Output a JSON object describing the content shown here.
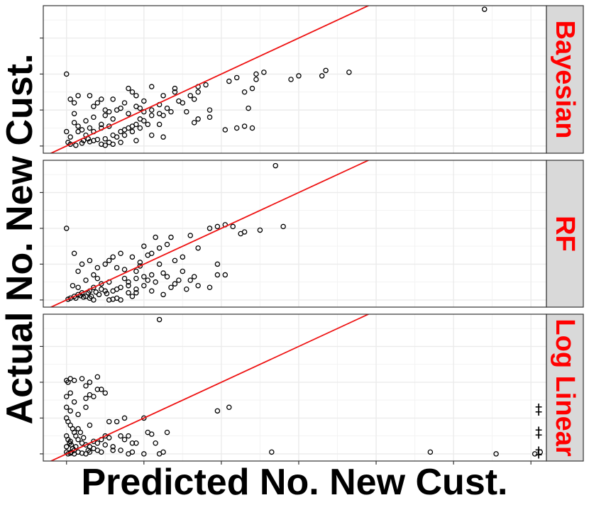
{
  "chart_data": {
    "type": "scatter",
    "title": "",
    "xlabel": "Predicted No. New Cust.",
    "ylabel": "Actual No. New Cust.",
    "x_range": [
      -0.3,
      6.2
    ],
    "y_range": [
      -0.2,
      3.9
    ],
    "grid": true,
    "reference_line": {
      "slope": 1,
      "intercept": 0,
      "color": "#ee1111"
    },
    "colors": {
      "strip_bg": "#d9d9d9",
      "strip_text": "#ff0000",
      "points": "#000000",
      "line": "#ee1111",
      "grid": "#ebebeb"
    },
    "panels": [
      {
        "strip": "Bayesian",
        "points": [
          [
            5.4,
            3.8
          ],
          [
            3.35,
            2.1
          ],
          [
            3.65,
            2.05
          ],
          [
            3.3,
            1.95
          ],
          [
            3.0,
            1.95
          ],
          [
            2.9,
            1.85
          ],
          [
            2.55,
            2.05
          ],
          [
            2.45,
            2.0
          ],
          [
            2.2,
            1.9
          ],
          [
            2.1,
            1.8
          ],
          [
            2.3,
            1.5
          ],
          [
            2.4,
            1.6
          ],
          [
            2.45,
            1.85
          ],
          [
            2.35,
            1.05
          ],
          [
            1.8,
            1.7
          ],
          [
            1.6,
            1.4
          ],
          [
            1.65,
            1.3
          ],
          [
            1.7,
            1.5
          ],
          [
            1.5,
            1.2
          ],
          [
            1.4,
            1.5
          ],
          [
            1.4,
            1.6
          ],
          [
            1.25,
            1.4
          ],
          [
            1.1,
            1.65
          ],
          [
            1.1,
            1.0
          ],
          [
            1.0,
            1.25
          ],
          [
            0.9,
            1.1
          ],
          [
            0.9,
            1.4
          ],
          [
            0.85,
            1.5
          ],
          [
            0.75,
            1.2
          ],
          [
            0.8,
            1.6
          ],
          [
            0.7,
            1.05
          ],
          [
            0.6,
            1.3
          ],
          [
            0.5,
            1.0
          ],
          [
            0.45,
            1.3
          ],
          [
            0.4,
            1.2
          ],
          [
            0.3,
            1.4
          ],
          [
            0.35,
            1.1
          ],
          [
            0.15,
            1.4
          ],
          [
            0.1,
            1.2
          ],
          [
            0.0,
            2.0
          ],
          [
            0.05,
            1.3
          ],
          [
            1.7,
            1.65
          ],
          [
            1.85,
            1.0
          ],
          [
            1.45,
            1.25
          ],
          [
            1.55,
            0.95
          ],
          [
            1.25,
            0.85
          ],
          [
            1.2,
            1.15
          ],
          [
            1.35,
            0.95
          ],
          [
            1.0,
            0.95
          ],
          [
            0.95,
            1.05
          ],
          [
            0.8,
            0.9
          ],
          [
            0.6,
            0.75
          ],
          [
            0.65,
            1.0
          ],
          [
            0.5,
            0.85
          ],
          [
            0.55,
            0.95
          ],
          [
            0.45,
            0.6
          ],
          [
            0.3,
            0.5
          ],
          [
            0.35,
            0.8
          ],
          [
            0.25,
            0.7
          ],
          [
            0.2,
            0.45
          ],
          [
            0.15,
            0.55
          ],
          [
            0.1,
            0.9
          ],
          [
            0.1,
            0.65
          ],
          [
            0.05,
            0.25
          ],
          [
            0.0,
            0.4
          ],
          [
            0.02,
            0.1
          ],
          [
            0.05,
            0.05
          ],
          [
            0.12,
            0.02
          ],
          [
            0.2,
            0.08
          ],
          [
            0.3,
            0.12
          ],
          [
            0.4,
            0.18
          ],
          [
            0.5,
            0.2
          ],
          [
            0.6,
            0.3
          ],
          [
            0.7,
            0.4
          ],
          [
            0.8,
            0.5
          ],
          [
            0.9,
            0.6
          ],
          [
            1.0,
            0.7
          ],
          [
            1.1,
            0.85
          ],
          [
            1.2,
            0.9
          ],
          [
            1.3,
            1.05
          ],
          [
            0.25,
            0.3
          ],
          [
            0.15,
            0.4
          ],
          [
            0.35,
            0.4
          ],
          [
            0.45,
            0.5
          ],
          [
            0.55,
            0.55
          ],
          [
            0.75,
            0.45
          ],
          [
            0.85,
            0.55
          ],
          [
            0.95,
            0.75
          ],
          [
            0.7,
            0.1
          ],
          [
            0.6,
            0.05
          ],
          [
            0.55,
            0.1
          ],
          [
            0.5,
            0.02
          ],
          [
            0.45,
            0.05
          ],
          [
            1.1,
            0.3
          ],
          [
            0.9,
            0.15
          ],
          [
            1.25,
            0.25
          ],
          [
            2.2,
            0.5
          ],
          [
            2.3,
            0.55
          ],
          [
            2.4,
            0.5
          ],
          [
            2.05,
            0.45
          ],
          [
            1.7,
            0.75
          ],
          [
            1.85,
            0.8
          ],
          [
            1.65,
            0.65
          ],
          [
            1.2,
            0.6
          ],
          [
            1.05,
            0.6
          ],
          [
            0.95,
            0.5
          ],
          [
            0.85,
            0.4
          ],
          [
            0.75,
            0.3
          ],
          [
            0.65,
            0.25
          ],
          [
            0.35,
            0.15
          ],
          [
            0.28,
            0.2
          ],
          [
            0.22,
            0.15
          ]
        ]
      },
      {
        "strip": "RF",
        "points": [
          [
            2.7,
            3.75
          ],
          [
            2.8,
            2.05
          ],
          [
            2.5,
            1.95
          ],
          [
            2.3,
            1.9
          ],
          [
            2.25,
            1.85
          ],
          [
            2.15,
            2.05
          ],
          [
            2.05,
            2.1
          ],
          [
            1.95,
            2.05
          ],
          [
            1.85,
            2.0
          ],
          [
            1.6,
            1.8
          ],
          [
            1.35,
            1.75
          ],
          [
            1.3,
            1.55
          ],
          [
            1.7,
            1.45
          ],
          [
            1.2,
            1.45
          ],
          [
            1.15,
            1.75
          ],
          [
            1.0,
            1.5
          ],
          [
            1.5,
            1.2
          ],
          [
            1.4,
            1.1
          ],
          [
            1.1,
            1.3
          ],
          [
            1.05,
            1.25
          ],
          [
            0.95,
            1.05
          ],
          [
            0.85,
            1.2
          ],
          [
            0.7,
            1.3
          ],
          [
            0.6,
            1.2
          ],
          [
            0.55,
            1.1
          ],
          [
            0.5,
            1.0
          ],
          [
            0.4,
            0.9
          ],
          [
            0.35,
            0.7
          ],
          [
            0.3,
            1.1
          ],
          [
            0.2,
            1.0
          ],
          [
            0.15,
            0.8
          ],
          [
            0.1,
            1.3
          ],
          [
            0.0,
            2.0
          ],
          [
            1.95,
            1.0
          ],
          [
            2.05,
            0.7
          ],
          [
            1.5,
            0.8
          ],
          [
            1.25,
            0.75
          ],
          [
            1.3,
            0.65
          ],
          [
            1.15,
            0.5
          ],
          [
            1.05,
            0.55
          ],
          [
            0.9,
            0.8
          ],
          [
            0.8,
            0.4
          ],
          [
            0.75,
            0.6
          ],
          [
            0.65,
            0.3
          ],
          [
            0.55,
            0.5
          ],
          [
            0.45,
            0.45
          ],
          [
            0.35,
            0.35
          ],
          [
            0.3,
            0.25
          ],
          [
            0.2,
            0.2
          ],
          [
            0.15,
            0.15
          ],
          [
            0.1,
            0.1
          ],
          [
            0.05,
            0.05
          ],
          [
            0.02,
            0.02
          ],
          [
            0.12,
            0.05
          ],
          [
            0.22,
            0.08
          ],
          [
            0.32,
            0.1
          ],
          [
            0.42,
            0.15
          ],
          [
            0.52,
            0.18
          ],
          [
            0.6,
            0.25
          ],
          [
            0.7,
            0.35
          ],
          [
            0.8,
            0.5
          ],
          [
            0.9,
            0.6
          ],
          [
            1.0,
            0.65
          ],
          [
            1.1,
            0.7
          ],
          [
            0.55,
            0.0
          ],
          [
            0.6,
            0.02
          ],
          [
            0.65,
            0.05
          ],
          [
            0.7,
            0.0
          ],
          [
            0.85,
            0.1
          ],
          [
            0.9,
            0.2
          ],
          [
            1.1,
            0.25
          ],
          [
            1.35,
            0.35
          ],
          [
            1.4,
            0.45
          ],
          [
            1.45,
            0.55
          ],
          [
            1.65,
            0.65
          ],
          [
            1.7,
            0.4
          ],
          [
            1.85,
            0.35
          ],
          [
            1.55,
            0.3
          ],
          [
            1.25,
            0.15
          ],
          [
            0.4,
            0.6
          ],
          [
            0.45,
            0.3
          ],
          [
            0.25,
            0.55
          ],
          [
            0.15,
            0.35
          ],
          [
            0.08,
            0.4
          ],
          [
            0.35,
            0.0
          ],
          [
            0.3,
            0.05
          ],
          [
            0.25,
            0.1
          ],
          [
            0.18,
            0.12
          ],
          [
            0.28,
            0.2
          ],
          [
            0.5,
            0.25
          ],
          [
            0.38,
            0.22
          ],
          [
            1.95,
            0.7
          ],
          [
            1.6,
            0.55
          ],
          [
            1.2,
            1.0
          ],
          [
            0.95,
            0.95
          ],
          [
            0.75,
            0.85
          ],
          [
            0.65,
            0.9
          ],
          [
            0.9,
            0.3
          ],
          [
            0.8,
            0.2
          ],
          [
            1.0,
            0.4
          ]
        ]
      },
      {
        "strip": "Log Linear",
        "points": [
          [
            1.2,
            3.75
          ],
          [
            0.0,
            2.05
          ],
          [
            0.02,
            2.0
          ],
          [
            0.05,
            2.1
          ],
          [
            0.1,
            2.05
          ],
          [
            0.2,
            2.1
          ],
          [
            0.3,
            2.0
          ],
          [
            0.4,
            2.15
          ],
          [
            0.25,
            1.9
          ],
          [
            0.4,
            1.8
          ],
          [
            0.45,
            1.8
          ],
          [
            0.5,
            1.7
          ],
          [
            0.3,
            1.65
          ],
          [
            0.35,
            1.6
          ],
          [
            0.25,
            1.55
          ],
          [
            0.0,
            1.6
          ],
          [
            0.05,
            1.7
          ],
          [
            0.1,
            1.45
          ],
          [
            0.0,
            1.3
          ],
          [
            0.05,
            1.2
          ],
          [
            0.15,
            1.1
          ],
          [
            0.25,
            1.3
          ],
          [
            0.0,
            1.0
          ],
          [
            0.02,
            0.9
          ],
          [
            0.05,
            0.8
          ],
          [
            0.08,
            0.7
          ],
          [
            0.1,
            0.6
          ],
          [
            0.12,
            0.5
          ],
          [
            0.15,
            0.4
          ],
          [
            0.2,
            0.3
          ],
          [
            0.25,
            0.25
          ],
          [
            0.3,
            0.2
          ],
          [
            0.35,
            0.15
          ],
          [
            0.4,
            0.1
          ],
          [
            0.45,
            0.05
          ],
          [
            0.0,
            0.5
          ],
          [
            0.02,
            0.4
          ],
          [
            0.04,
            0.3
          ],
          [
            0.06,
            0.25
          ],
          [
            0.08,
            0.15
          ],
          [
            0.1,
            0.1
          ],
          [
            0.0,
            0.05
          ],
          [
            0.02,
            0.0
          ],
          [
            0.05,
            0.02
          ],
          [
            0.1,
            0.0
          ],
          [
            0.15,
            0.05
          ],
          [
            0.2,
            0.02
          ],
          [
            0.25,
            0.0
          ],
          [
            0.3,
            0.05
          ],
          [
            0.4,
            0.3
          ],
          [
            0.45,
            0.4
          ],
          [
            0.5,
            0.5
          ],
          [
            0.55,
            0.45
          ],
          [
            0.55,
            0.9
          ],
          [
            0.65,
            0.9
          ],
          [
            0.7,
            0.5
          ],
          [
            0.75,
            1.0
          ],
          [
            0.75,
            0.4
          ],
          [
            0.8,
            0.0
          ],
          [
            0.85,
            0.05
          ],
          [
            0.9,
            0.3
          ],
          [
            1.0,
            1.0
          ],
          [
            1.05,
            0.6
          ],
          [
            1.1,
            0.55
          ],
          [
            1.0,
            0.0
          ],
          [
            1.2,
            0.0
          ],
          [
            1.25,
            0.05
          ],
          [
            1.3,
            0.6
          ],
          [
            0.8,
            0.5
          ],
          [
            0.85,
            0.3
          ],
          [
            0.6,
            0.2
          ],
          [
            0.7,
            0.1
          ],
          [
            0.5,
            0.25
          ],
          [
            0.35,
            0.35
          ],
          [
            0.15,
            0.7
          ],
          [
            0.3,
            0.8
          ],
          [
            0.6,
            0.1
          ],
          [
            1.15,
            0.3
          ],
          [
            1.95,
            1.2
          ],
          [
            2.1,
            1.3
          ],
          [
            2.65,
            0.05
          ],
          [
            4.7,
            0.05
          ],
          [
            5.55,
            0.0
          ],
          [
            6.05,
            0.0
          ],
          [
            6.12,
            0.05
          ],
          [
            0.05,
            0.35
          ],
          [
            0.0,
            0.2
          ],
          [
            0.06,
            0.05
          ],
          [
            0.12,
            0.2
          ],
          [
            0.18,
            0.6
          ],
          [
            0.22,
            0.45
          ],
          [
            0.28,
            0.1
          ]
        ],
        "annotations": [
          {
            "text": "‡",
            "x": 6.1,
            "y": 1.25
          },
          {
            "text": "‡",
            "x": 6.1,
            "y": 0.6
          },
          {
            "text": "‡",
            "x": 6.1,
            "y": 0.05
          }
        ]
      }
    ]
  }
}
